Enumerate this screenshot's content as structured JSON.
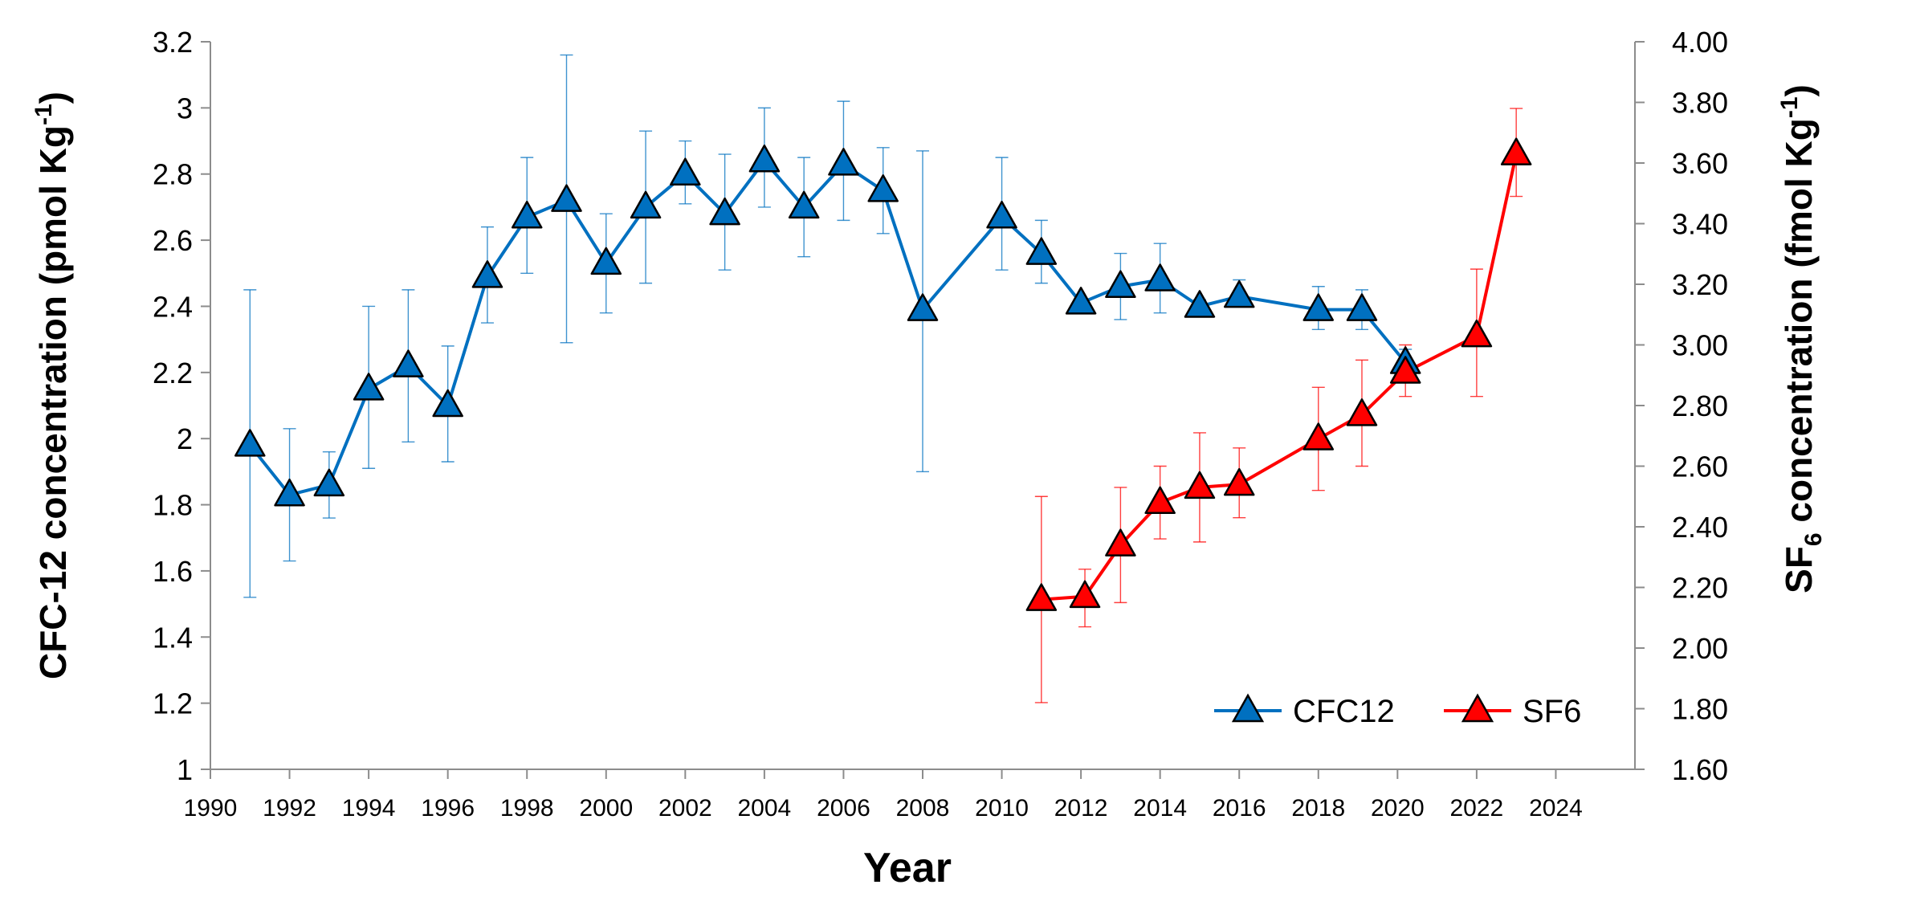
{
  "colors": {
    "cfc": "#0070C0",
    "sf6": "#FF0000",
    "axis": "#8C8C8C"
  },
  "chart_data": {
    "type": "line",
    "xlabel": "Year",
    "ylabel_left": {
      "main": "CFC-12 concentration (pmol Kg",
      "sup": "-1",
      "tail": ")"
    },
    "ylabel_right": {
      "pre": "SF",
      "sub": "6",
      "mid": " concentration (fmol  Kg",
      "sup": "-1",
      "tail": ")"
    },
    "xlim": [
      1990,
      2026
    ],
    "ylim_left": [
      1,
      3.2
    ],
    "ylim_right": [
      1.6,
      4.0
    ],
    "x_ticks": [
      "1990",
      "1992",
      "1994",
      "1996",
      "1998",
      "2000",
      "2002",
      "2004",
      "2006",
      "2008",
      "2010",
      "2012",
      "2014",
      "2016",
      "2018",
      "2020",
      "2022",
      "2024"
    ],
    "y_left_ticks": [
      "1",
      "1.2",
      "1.4",
      "1.6",
      "1.8",
      "2",
      "2.2",
      "2.4",
      "2.6",
      "2.8",
      "3",
      "3.2"
    ],
    "y_right_ticks": [
      "1.60",
      "1.80",
      "2.00",
      "2.20",
      "2.40",
      "2.60",
      "2.80",
      "3.00",
      "3.20",
      "3.40",
      "3.60",
      "3.80",
      "4.00"
    ],
    "legend_position": "bottom-right",
    "series": [
      {
        "name": "CFC12",
        "axis": "left",
        "x": [
          1991,
          1992,
          1993,
          1994,
          1995,
          1996,
          1997,
          1998,
          1999,
          2000,
          2001,
          2002,
          2003,
          2004,
          2005,
          2006,
          2007,
          2008,
          2010,
          2011,
          2012,
          2013,
          2014,
          2015,
          2016,
          2018,
          2019.1,
          2020.2
        ],
        "y": [
          1.98,
          1.83,
          1.86,
          2.15,
          2.22,
          2.1,
          2.49,
          2.67,
          2.72,
          2.53,
          2.7,
          2.8,
          2.68,
          2.84,
          2.7,
          2.83,
          2.75,
          2.39,
          2.67,
          2.56,
          2.41,
          2.46,
          2.48,
          2.4,
          2.43,
          2.39,
          2.39,
          2.23
        ],
        "err_upper": [
          2.45,
          2.03,
          1.96,
          2.4,
          2.45,
          2.28,
          2.64,
          2.85,
          3.16,
          2.68,
          2.93,
          2.9,
          2.86,
          3.0,
          2.85,
          3.02,
          2.88,
          2.87,
          2.85,
          2.66,
          2.42,
          2.56,
          2.59,
          2.42,
          2.48,
          2.46,
          2.45,
          2.27
        ],
        "err_lower": [
          1.52,
          1.63,
          1.76,
          1.91,
          1.99,
          1.93,
          2.35,
          2.5,
          2.29,
          2.38,
          2.47,
          2.71,
          2.51,
          2.7,
          2.55,
          2.66,
          2.62,
          1.9,
          2.51,
          2.47,
          2.39,
          2.36,
          2.38,
          2.38,
          2.41,
          2.33,
          2.33,
          2.19
        ]
      },
      {
        "name": "SF6",
        "axis": "right",
        "x": [
          2011,
          2012.1,
          2013,
          2014,
          2015,
          2016,
          2018,
          2019.1,
          2020.2,
          2022,
          2023
        ],
        "y": [
          2.16,
          2.17,
          2.34,
          2.48,
          2.53,
          2.54,
          2.69,
          2.77,
          2.91,
          3.03,
          3.63
        ],
        "err_upper": [
          2.5,
          2.26,
          2.53,
          2.6,
          2.71,
          2.66,
          2.86,
          2.95,
          3.0,
          3.25,
          3.78
        ],
        "err_lower": [
          1.82,
          2.07,
          2.15,
          2.36,
          2.35,
          2.43,
          2.52,
          2.6,
          2.83,
          2.83,
          3.49
        ]
      }
    ]
  }
}
